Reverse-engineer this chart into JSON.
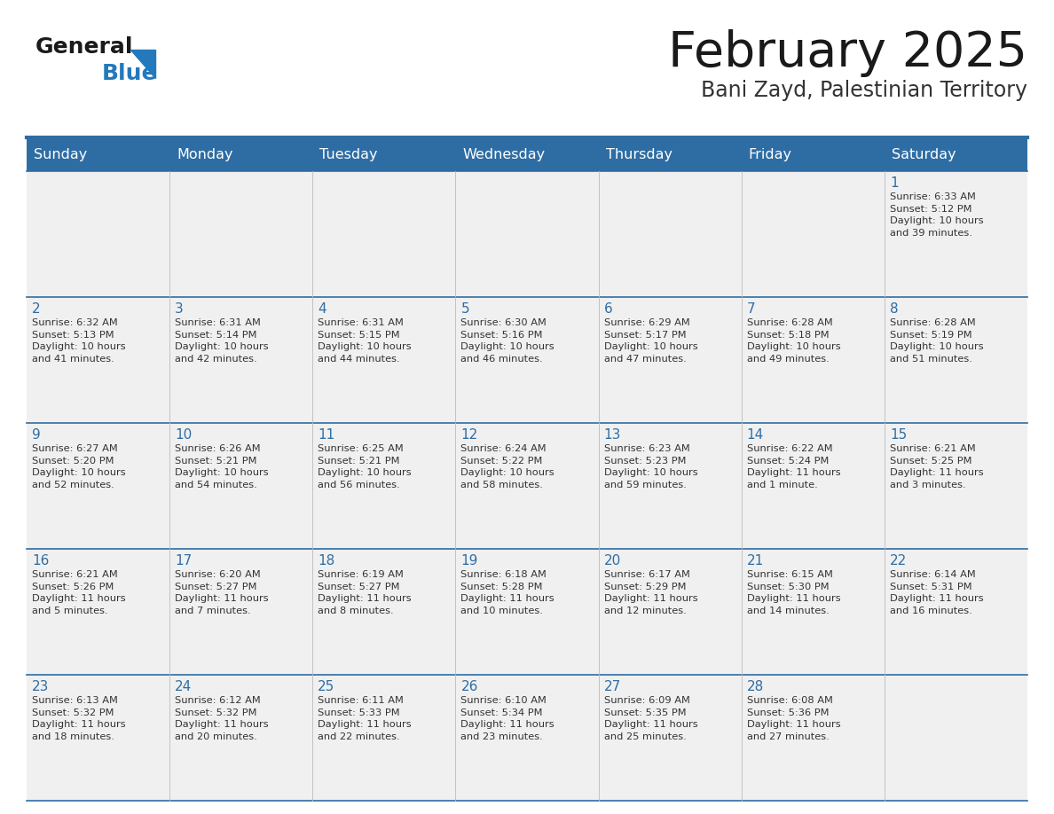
{
  "title": "February 2025",
  "subtitle": "Bani Zayd, Palestinian Territory",
  "header_bg": "#2E6DA4",
  "header_text_color": "#FFFFFF",
  "cell_bg": "#F0F0F0",
  "day_number_color": "#2E6DA4",
  "info_text_color": "#333333",
  "border_color": "#2E6DA4",
  "days_of_week": [
    "Sunday",
    "Monday",
    "Tuesday",
    "Wednesday",
    "Thursday",
    "Friday",
    "Saturday"
  ],
  "weeks": [
    [
      {
        "day": "",
        "info": ""
      },
      {
        "day": "",
        "info": ""
      },
      {
        "day": "",
        "info": ""
      },
      {
        "day": "",
        "info": ""
      },
      {
        "day": "",
        "info": ""
      },
      {
        "day": "",
        "info": ""
      },
      {
        "day": "1",
        "info": "Sunrise: 6:33 AM\nSunset: 5:12 PM\nDaylight: 10 hours\nand 39 minutes."
      }
    ],
    [
      {
        "day": "2",
        "info": "Sunrise: 6:32 AM\nSunset: 5:13 PM\nDaylight: 10 hours\nand 41 minutes."
      },
      {
        "day": "3",
        "info": "Sunrise: 6:31 AM\nSunset: 5:14 PM\nDaylight: 10 hours\nand 42 minutes."
      },
      {
        "day": "4",
        "info": "Sunrise: 6:31 AM\nSunset: 5:15 PM\nDaylight: 10 hours\nand 44 minutes."
      },
      {
        "day": "5",
        "info": "Sunrise: 6:30 AM\nSunset: 5:16 PM\nDaylight: 10 hours\nand 46 minutes."
      },
      {
        "day": "6",
        "info": "Sunrise: 6:29 AM\nSunset: 5:17 PM\nDaylight: 10 hours\nand 47 minutes."
      },
      {
        "day": "7",
        "info": "Sunrise: 6:28 AM\nSunset: 5:18 PM\nDaylight: 10 hours\nand 49 minutes."
      },
      {
        "day": "8",
        "info": "Sunrise: 6:28 AM\nSunset: 5:19 PM\nDaylight: 10 hours\nand 51 minutes."
      }
    ],
    [
      {
        "day": "9",
        "info": "Sunrise: 6:27 AM\nSunset: 5:20 PM\nDaylight: 10 hours\nand 52 minutes."
      },
      {
        "day": "10",
        "info": "Sunrise: 6:26 AM\nSunset: 5:21 PM\nDaylight: 10 hours\nand 54 minutes."
      },
      {
        "day": "11",
        "info": "Sunrise: 6:25 AM\nSunset: 5:21 PM\nDaylight: 10 hours\nand 56 minutes."
      },
      {
        "day": "12",
        "info": "Sunrise: 6:24 AM\nSunset: 5:22 PM\nDaylight: 10 hours\nand 58 minutes."
      },
      {
        "day": "13",
        "info": "Sunrise: 6:23 AM\nSunset: 5:23 PM\nDaylight: 10 hours\nand 59 minutes."
      },
      {
        "day": "14",
        "info": "Sunrise: 6:22 AM\nSunset: 5:24 PM\nDaylight: 11 hours\nand 1 minute."
      },
      {
        "day": "15",
        "info": "Sunrise: 6:21 AM\nSunset: 5:25 PM\nDaylight: 11 hours\nand 3 minutes."
      }
    ],
    [
      {
        "day": "16",
        "info": "Sunrise: 6:21 AM\nSunset: 5:26 PM\nDaylight: 11 hours\nand 5 minutes."
      },
      {
        "day": "17",
        "info": "Sunrise: 6:20 AM\nSunset: 5:27 PM\nDaylight: 11 hours\nand 7 minutes."
      },
      {
        "day": "18",
        "info": "Sunrise: 6:19 AM\nSunset: 5:27 PM\nDaylight: 11 hours\nand 8 minutes."
      },
      {
        "day": "19",
        "info": "Sunrise: 6:18 AM\nSunset: 5:28 PM\nDaylight: 11 hours\nand 10 minutes."
      },
      {
        "day": "20",
        "info": "Sunrise: 6:17 AM\nSunset: 5:29 PM\nDaylight: 11 hours\nand 12 minutes."
      },
      {
        "day": "21",
        "info": "Sunrise: 6:15 AM\nSunset: 5:30 PM\nDaylight: 11 hours\nand 14 minutes."
      },
      {
        "day": "22",
        "info": "Sunrise: 6:14 AM\nSunset: 5:31 PM\nDaylight: 11 hours\nand 16 minutes."
      }
    ],
    [
      {
        "day": "23",
        "info": "Sunrise: 6:13 AM\nSunset: 5:32 PM\nDaylight: 11 hours\nand 18 minutes."
      },
      {
        "day": "24",
        "info": "Sunrise: 6:12 AM\nSunset: 5:32 PM\nDaylight: 11 hours\nand 20 minutes."
      },
      {
        "day": "25",
        "info": "Sunrise: 6:11 AM\nSunset: 5:33 PM\nDaylight: 11 hours\nand 22 minutes."
      },
      {
        "day": "26",
        "info": "Sunrise: 6:10 AM\nSunset: 5:34 PM\nDaylight: 11 hours\nand 23 minutes."
      },
      {
        "day": "27",
        "info": "Sunrise: 6:09 AM\nSunset: 5:35 PM\nDaylight: 11 hours\nand 25 minutes."
      },
      {
        "day": "28",
        "info": "Sunrise: 6:08 AM\nSunset: 5:36 PM\nDaylight: 11 hours\nand 27 minutes."
      },
      {
        "day": "",
        "info": ""
      }
    ]
  ],
  "logo_text1": "General",
  "logo_text2": "Blue",
  "logo_color1": "#1a1a1a",
  "logo_color2": "#2479BD",
  "logo_triangle_color": "#2479BD",
  "title_color": "#1a1a1a",
  "subtitle_color": "#333333"
}
